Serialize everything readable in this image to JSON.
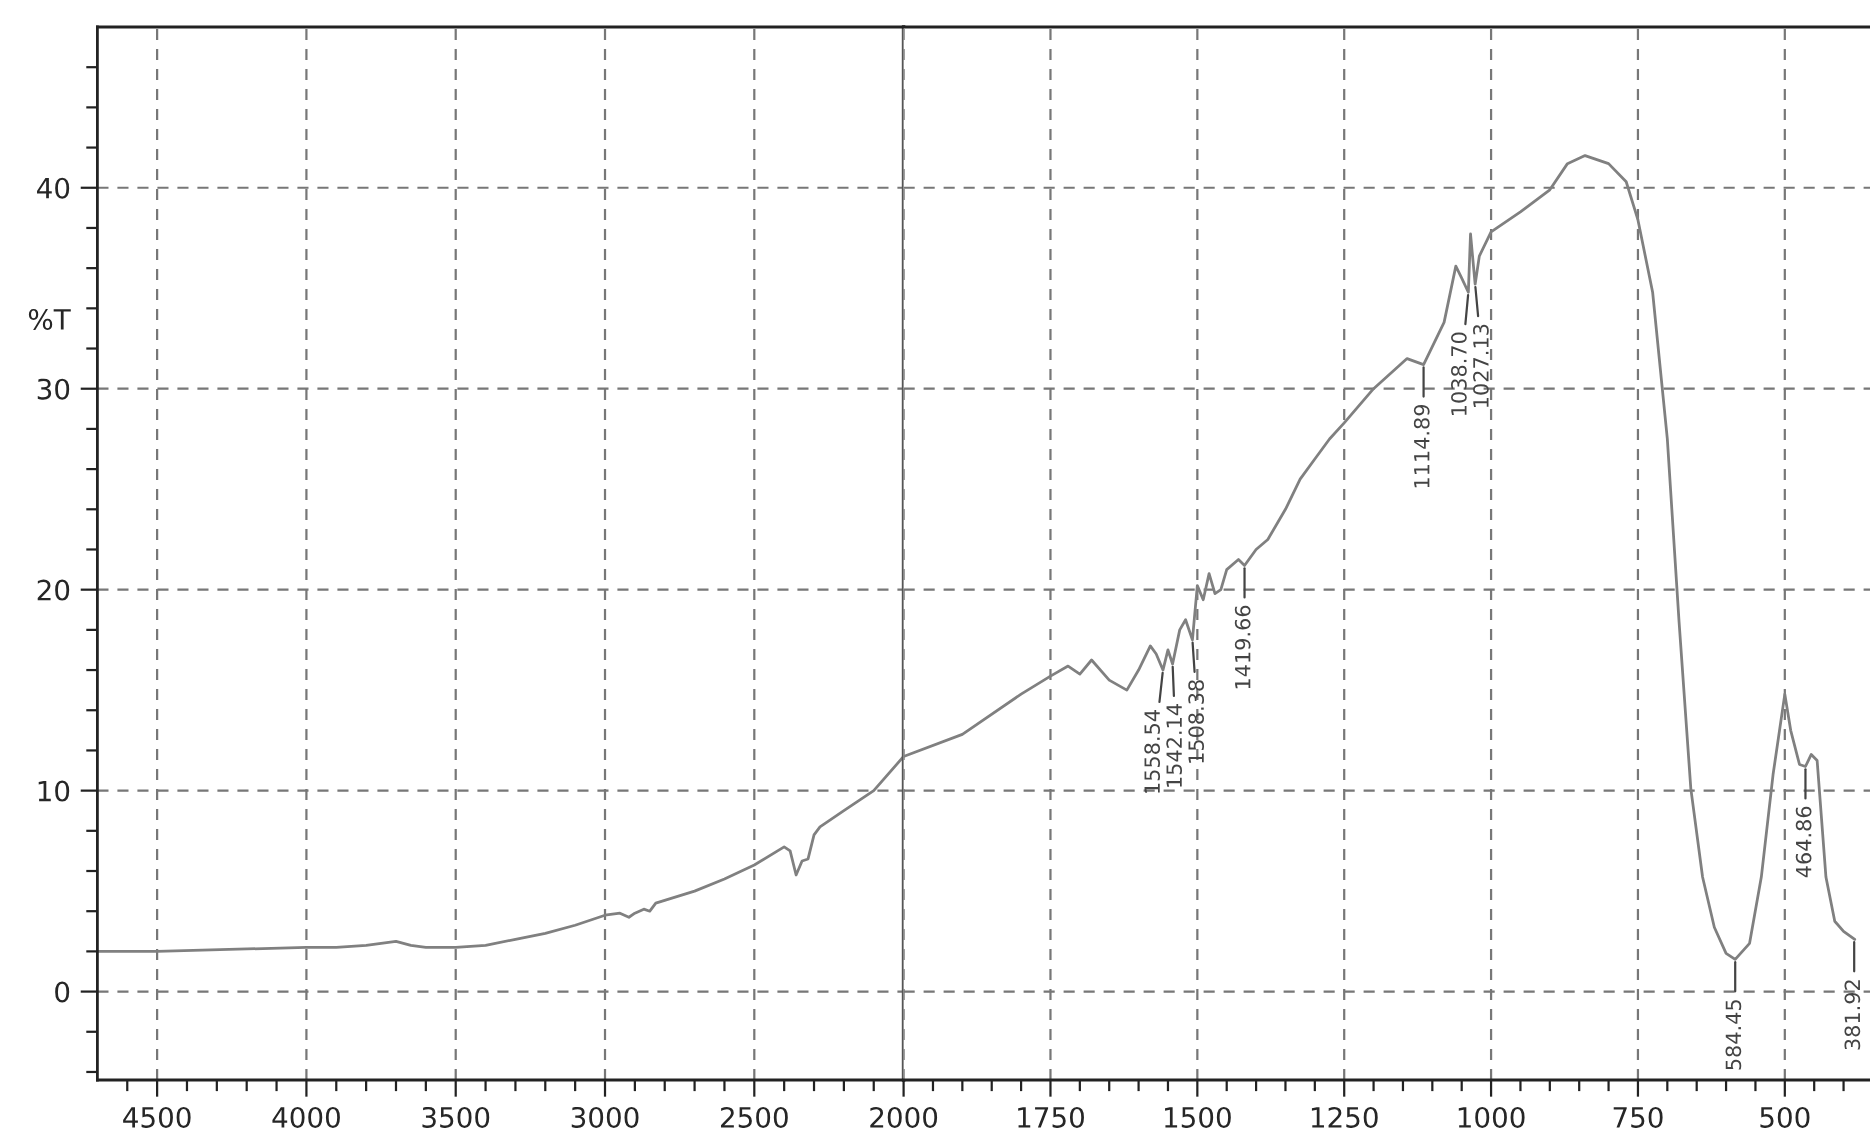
{
  "chart_data": [
    {
      "type": "line",
      "ylabel": "%T",
      "xlim": [
        4700,
        2000
      ],
      "ylim": [
        -4.4,
        48
      ],
      "xticks": [
        4500,
        4000,
        3500,
        3000,
        2500,
        {
          "value": 4600,
          "label": null
        },
        {
          "value": 4400,
          "label": null
        },
        {
          "value": 4300,
          "label": null
        },
        {
          "value": 4200,
          "label": null
        },
        {
          "value": 4100,
          "label": null
        },
        {
          "value": 3900,
          "label": null
        },
        {
          "value": 3800,
          "label": null
        },
        {
          "value": 3700,
          "label": null
        },
        {
          "value": 3600,
          "label": null
        },
        {
          "value": 3400,
          "label": null
        },
        {
          "value": 3300,
          "label": null
        },
        {
          "value": 3200,
          "label": null
        },
        {
          "value": 3100,
          "label": null
        },
        {
          "value": 2900,
          "label": null
        },
        {
          "value": 2800,
          "label": null
        },
        {
          "value": 2700,
          "label": null
        },
        {
          "value": 2600,
          "label": null
        },
        {
          "value": 2400,
          "label": null
        },
        {
          "value": 2300,
          "label": null
        },
        {
          "value": 2200,
          "label": null
        },
        {
          "value": 2100,
          "label": null
        }
      ],
      "yticks": [
        0,
        10,
        20,
        30,
        40,
        {
          "value": -4,
          "label": null
        },
        {
          "value": -2,
          "label": null
        },
        {
          "value": 2,
          "label": null
        },
        {
          "value": 4,
          "label": null
        },
        {
          "value": 6,
          "label": null
        },
        {
          "value": 8,
          "label": null
        },
        {
          "value": 12,
          "label": null
        },
        {
          "value": 14,
          "label": null
        },
        {
          "value": 16,
          "label": null
        },
        {
          "value": 18,
          "label": null
        },
        {
          "value": 22,
          "label": null
        },
        {
          "value": 24,
          "label": null
        },
        {
          "value": 26,
          "label": null
        },
        {
          "value": 28,
          "label": null
        },
        {
          "value": 32,
          "label": null
        },
        {
          "value": 34,
          "label": null
        },
        {
          "value": 36,
          "label": null
        },
        {
          "value": 38,
          "label": null
        },
        {
          "value": 42,
          "label": null
        },
        {
          "value": 44,
          "label": null
        },
        {
          "value": 46,
          "label": null
        }
      ],
      "grid": true,
      "line_style": "solid",
      "marker": "none",
      "series": [
        {
          "color": "#808080",
          "x": [
            4700,
            4500,
            4000,
            3900,
            3800,
            3700,
            3650,
            3600,
            3500,
            3400,
            3300,
            3200,
            3100,
            3000,
            2950,
            2920,
            2900,
            2870,
            2850,
            2830,
            2700,
            2600,
            2500,
            2400,
            2380,
            2360,
            2340,
            2320,
            2300,
            2280,
            2200,
            2100,
            2000
          ],
          "values": [
            2.0,
            2.0,
            2.2,
            2.2,
            2.3,
            2.5,
            2.3,
            2.2,
            2.2,
            2.3,
            2.6,
            2.9,
            3.3,
            3.8,
            3.9,
            3.7,
            3.9,
            4.1,
            4.0,
            4.4,
            5.0,
            5.6,
            6.3,
            7.2,
            7.0,
            5.8,
            6.5,
            6.6,
            7.8,
            8.2,
            9.0,
            10.0,
            11.7
          ]
        }
      ]
    },
    {
      "type": "line",
      "xlim": [
        2000,
        355
      ],
      "ylim": [
        -4.4,
        48
      ],
      "tick_labels": "x",
      "xticks": [
        2000,
        1750,
        1500,
        1250,
        1000,
        750,
        500,
        {
          "value": 1950,
          "label": null
        },
        {
          "value": 1900,
          "label": null
        },
        {
          "value": 1850,
          "label": null
        },
        {
          "value": 1800,
          "label": null
        },
        {
          "value": 1700,
          "label": null
        },
        {
          "value": 1650,
          "label": null
        },
        {
          "value": 1600,
          "label": null
        },
        {
          "value": 1550,
          "label": null
        },
        {
          "value": 1450,
          "label": null
        },
        {
          "value": 1400,
          "label": null
        },
        {
          "value": 1350,
          "label": null
        },
        {
          "value": 1300,
          "label": null
        },
        {
          "value": 1200,
          "label": null
        },
        {
          "value": 1150,
          "label": null
        },
        {
          "value": 1100,
          "label": null
        },
        {
          "value": 1050,
          "label": null
        },
        {
          "value": 950,
          "label": null
        },
        {
          "value": 900,
          "label": null
        },
        {
          "value": 850,
          "label": null
        },
        {
          "value": 800,
          "label": null
        },
        {
          "value": 700,
          "label": null
        },
        {
          "value": 650,
          "label": null
        },
        {
          "value": 600,
          "label": null
        },
        {
          "value": 550,
          "label": null
        },
        {
          "value": 450,
          "label": null
        },
        {
          "value": 400,
          "label": null
        }
      ],
      "yticks": [
        0,
        10,
        20,
        30,
        40
      ],
      "grid": true,
      "line_style": "solid",
      "marker": "none",
      "series": [
        {
          "color": "#808080",
          "x": [
            2000,
            1900,
            1800,
            1750,
            1720,
            1700,
            1680,
            1650,
            1620,
            1600,
            1580,
            1570,
            1558.54,
            1550,
            1542.14,
            1530,
            1520,
            1508.38,
            1500,
            1490,
            1480,
            1470,
            1460,
            1450,
            1430,
            1419.66,
            1400,
            1380,
            1350,
            1325,
            1300,
            1275,
            1250,
            1200,
            1143,
            1114.89,
            1080,
            1060,
            1050,
            1038.7,
            1035,
            1027.13,
            1020,
            1000,
            950,
            900,
            870,
            840,
            800,
            770,
            750,
            725,
            700,
            680,
            660,
            640,
            620,
            600,
            584.45,
            560,
            540,
            520,
            500,
            490,
            475,
            464.86,
            455,
            445,
            430,
            415,
            400,
            381
          ],
          "values": [
            11.7,
            12.8,
            14.8,
            15.7,
            16.2,
            15.8,
            16.5,
            15.5,
            15.0,
            16.0,
            17.2,
            16.8,
            16.0,
            17.0,
            16.3,
            18.0,
            18.5,
            17.5,
            20.2,
            19.5,
            20.8,
            19.8,
            20.0,
            21.0,
            21.5,
            21.2,
            22.0,
            22.5,
            24.0,
            25.5,
            26.5,
            27.5,
            28.3,
            30.0,
            31.5,
            31.2,
            33.3,
            36.1,
            35.5,
            34.8,
            37.7,
            35.2,
            36.6,
            37.8,
            38.8,
            39.9,
            41.2,
            41.6,
            41.2,
            40.3,
            38.4,
            34.8,
            27.5,
            18.4,
            10.1,
            5.7,
            3.2,
            1.9,
            1.6,
            2.4,
            5.7,
            10.8,
            14.8,
            13.0,
            11.3,
            11.2,
            11.8,
            11.5,
            5.7,
            3.5,
            3.0,
            2.6
          ]
        }
      ],
      "annotations": [
        {
          "text": "1558.54",
          "x": 1558.54,
          "y": 16.0
        },
        {
          "text": "1542.14",
          "x": 1542.14,
          "y": 16.3
        },
        {
          "text": "1508.38",
          "x": 1508.38,
          "y": 17.5
        },
        {
          "text": "1419.66",
          "x": 1419.66,
          "y": 21.2
        },
        {
          "text": "1114.89",
          "x": 1114.89,
          "y": 31.2
        },
        {
          "text": "1038.70",
          "x": 1038.7,
          "y": 34.8
        },
        {
          "text": "1027.13",
          "x": 1027.13,
          "y": 35.2
        },
        {
          "text": "584.45",
          "x": 584.45,
          "y": 1.6
        },
        {
          "text": "464.86",
          "x": 464.86,
          "y": 11.2
        },
        {
          "text": "381.92",
          "x": 381.92,
          "y": 2.6
        }
      ]
    }
  ]
}
